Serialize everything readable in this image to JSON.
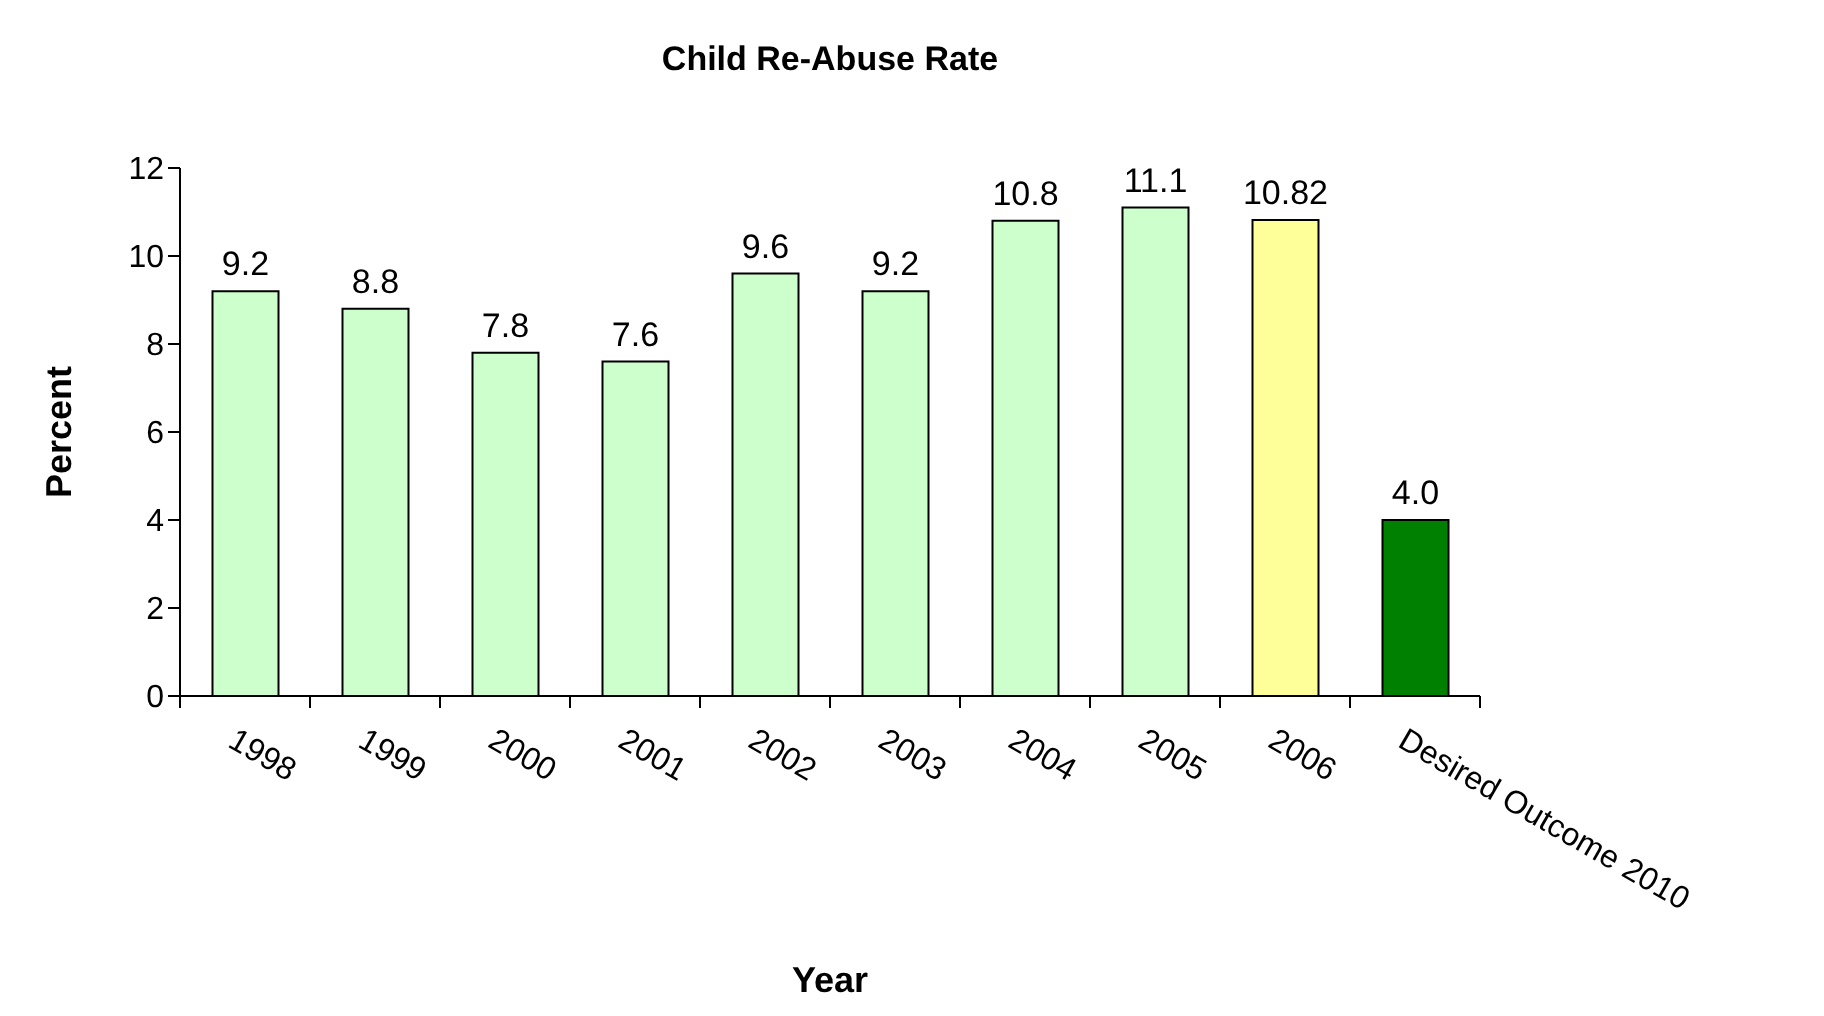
{
  "chart_data": {
    "type": "bar",
    "title": "Child Re-Abuse Rate",
    "xlabel": "Year",
    "ylabel": "Percent",
    "categories": [
      "1998",
      "1999",
      "2000",
      "2001",
      "2002",
      "2003",
      "2004",
      "2005",
      "2006",
      "Desired Outcome 2010"
    ],
    "values": [
      9.2,
      8.8,
      7.8,
      7.6,
      9.6,
      9.2,
      10.8,
      11.1,
      10.82,
      4.0
    ],
    "colors": [
      "#ccffcc",
      "#ccffcc",
      "#ccffcc",
      "#ccffcc",
      "#ccffcc",
      "#ccffcc",
      "#ccffcc",
      "#ccffcc",
      "#ffff99",
      "#008000"
    ],
    "value_labels": [
      "9.2",
      "8.8",
      "7.8",
      "7.6",
      "9.6",
      "9.2",
      "10.8",
      "11.1",
      "10.82",
      "4.0"
    ],
    "ylim": [
      0,
      12
    ],
    "yticks": [
      0,
      2,
      4,
      6,
      8,
      10,
      12
    ],
    "grid": false
  }
}
